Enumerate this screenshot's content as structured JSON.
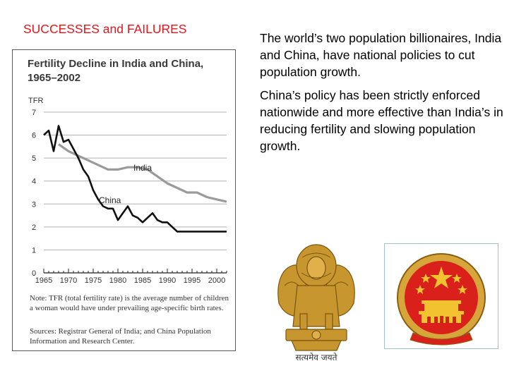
{
  "slide": {
    "title": "SUCCESSES and FAILURES",
    "paragraphs": [
      "The world’s two population billionaires, India and China, have national policies to cut population growth.",
      "China’s policy has been strictly enforced nationwide and more effective than India’s in reducing fertility and slowing population growth."
    ]
  },
  "figure": {
    "note": "Note: TFR (total fertility rate) is the average number of children a woman would have under prevailing age-specific birth rates.",
    "source": "Sources: Registrar General of India; and China Population Information and Research Center."
  },
  "emblems": {
    "india_caption": "सत्यमेव जयते",
    "india_icon": "india-emblem-icon",
    "china_icon": "china-emblem-icon"
  },
  "colors": {
    "title_red": "#e8141c",
    "india_line": "#9a9a9a",
    "china_line": "#111111",
    "emblem_gold": "#c8962e",
    "china_red": "#d9201a"
  },
  "chart_data": {
    "type": "line",
    "title": "Fertility Decline in India and China, 1965–2002",
    "ylabel": "TFR",
    "xlabel": "",
    "ylim": [
      0,
      7
    ],
    "xlim": [
      1965,
      2002
    ],
    "yticks": [
      0,
      1,
      2,
      3,
      4,
      5,
      6,
      7
    ],
    "xticks": [
      1965,
      1970,
      1975,
      1980,
      1985,
      1990,
      1995,
      2000
    ],
    "grid": true,
    "series": [
      {
        "name": "India",
        "x": [
          1968,
          1970,
          1972,
          1974,
          1976,
          1978,
          1980,
          1982,
          1984,
          1986,
          1988,
          1990,
          1992,
          1994,
          1996,
          1998,
          2000,
          2002
        ],
        "y": [
          5.6,
          5.3,
          5.1,
          4.9,
          4.7,
          4.5,
          4.5,
          4.6,
          4.6,
          4.5,
          4.2,
          3.9,
          3.7,
          3.5,
          3.5,
          3.3,
          3.2,
          3.1
        ]
      },
      {
        "name": "China",
        "x": [
          1965,
          1966,
          1967,
          1968,
          1969,
          1970,
          1971,
          1972,
          1973,
          1974,
          1975,
          1976,
          1977,
          1978,
          1979,
          1980,
          1981,
          1982,
          1983,
          1984,
          1985,
          1986,
          1987,
          1988,
          1989,
          1990,
          1991,
          1992,
          1994,
          1996,
          1998,
          2000,
          2002
        ],
        "y": [
          6.0,
          6.2,
          5.3,
          6.4,
          5.7,
          5.8,
          5.4,
          5.0,
          4.5,
          4.2,
          3.6,
          3.2,
          2.9,
          2.8,
          2.8,
          2.3,
          2.6,
          2.9,
          2.5,
          2.4,
          2.2,
          2.4,
          2.6,
          2.3,
          2.2,
          2.2,
          2.0,
          1.8,
          1.8,
          1.8,
          1.8,
          1.8,
          1.8
        ]
      }
    ]
  }
}
